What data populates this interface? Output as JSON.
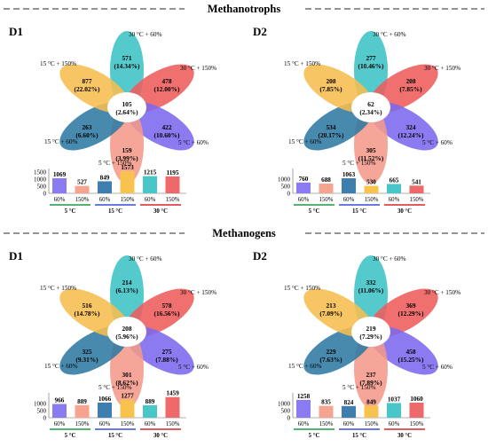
{
  "sections": [
    {
      "title": "Methanotrophs",
      "panels": [
        {
          "label": "D1",
          "center": {
            "count": "105",
            "pct": "(2.64%)"
          },
          "petals": [
            {
              "label": "30 °C + 60%",
              "count": "571",
              "pct": "(14.34%)",
              "color": "#3cc3c6"
            },
            {
              "label": "30 °C + 150%",
              "count": "478",
              "pct": "(12.00%)",
              "color": "#ee5c5c"
            },
            {
              "label": "5 °C + 60%",
              "count": "422",
              "pct": "(10.60%)",
              "color": "#7b68ee"
            },
            {
              "label": "5 °C + 150%",
              "count": "159",
              "pct": "(3.99%)",
              "color": "#f49a8a"
            },
            {
              "label": "15 °C + 60%",
              "count": "263",
              "pct": "(6.60%)",
              "color": "#2f7aa3"
            },
            {
              "label": "15 °C + 150%",
              "count": "877",
              "pct": "(22.02%)",
              "color": "#f7bd4e"
            }
          ],
          "bars": {
            "values": [
              1069,
              527,
              849,
              1573,
              1215,
              1195
            ],
            "value_labels": [
              "1069",
              "527",
              "849",
              "1573",
              "1215",
              "1195"
            ],
            "ticks": [
              "1500",
              "1000",
              "500",
              "0"
            ],
            "categories": [
              "60%",
              "150%",
              "60%",
              "150%",
              "60%",
              "150%"
            ],
            "groups": [
              "5 °C",
              "15 °C",
              "30 °C"
            ]
          }
        },
        {
          "label": "D2",
          "center": {
            "count": "62",
            "pct": "(2.34%)"
          },
          "petals": [
            {
              "label": "30 °C + 60%",
              "count": "277",
              "pct": "(10.46%)",
              "color": "#3cc3c6"
            },
            {
              "label": "30 °C + 150%",
              "count": "208",
              "pct": "(7.85%)",
              "color": "#ee5c5c"
            },
            {
              "label": "5 °C + 60%",
              "count": "324",
              "pct": "(12.24%)",
              "color": "#7b68ee"
            },
            {
              "label": "5 °C + 150%",
              "count": "305",
              "pct": "(11.52%)",
              "color": "#f49a8a"
            },
            {
              "label": "15 °C + 60%",
              "count": "534",
              "pct": "(20.17%)",
              "color": "#2f7aa3"
            },
            {
              "label": "15 °C + 150%",
              "count": "208",
              "pct": "(7.85%)",
              "color": "#f7bd4e"
            }
          ],
          "bars": {
            "values": [
              760,
              688,
              1063,
              530,
              665,
              541
            ],
            "value_labels": [
              "760",
              "688",
              "1063",
              "530",
              "665",
              "541"
            ],
            "ticks": [
              "1000",
              "500",
              "0"
            ],
            "categories": [
              "60%",
              "150%",
              "60%",
              "150%",
              "60%",
              "150%"
            ],
            "groups": [
              "5 °C",
              "15 °C",
              "30 °C"
            ]
          }
        }
      ]
    },
    {
      "title": "Methanogens",
      "panels": [
        {
          "label": "D1",
          "center": {
            "count": "208",
            "pct": "(5.96%)"
          },
          "petals": [
            {
              "label": "30 °C + 60%",
              "count": "214",
              "pct": "(6.13%)",
              "color": "#3cc3c6"
            },
            {
              "label": "30 °C + 150%",
              "count": "578",
              "pct": "(16.56%)",
              "color": "#ee5c5c"
            },
            {
              "label": "5 °C + 60%",
              "count": "275",
              "pct": "(7.88%)",
              "color": "#7b68ee"
            },
            {
              "label": "5 °C + 150%",
              "count": "301",
              "pct": "(8.62%)",
              "color": "#f49a8a"
            },
            {
              "label": "15 °C + 60%",
              "count": "325",
              "pct": "(9.31%)",
              "color": "#2f7aa3"
            },
            {
              "label": "15 °C + 150%",
              "count": "516",
              "pct": "(14.78%)",
              "color": "#f7bd4e"
            }
          ],
          "bars": {
            "values": [
              966,
              889,
              1066,
              1277,
              889,
              1459
            ],
            "value_labels": [
              "966",
              "889",
              "1066",
              "1277",
              "889",
              "1459"
            ],
            "ticks": [
              "1000",
              "500",
              "0"
            ],
            "categories": [
              "60%",
              "150%",
              "60%",
              "150%",
              "60%",
              "150%"
            ],
            "groups": [
              "5 °C",
              "15 °C",
              "30 °C"
            ]
          }
        },
        {
          "label": "D2",
          "center": {
            "count": "219",
            "pct": "(7.29%)"
          },
          "petals": [
            {
              "label": "30 °C + 60%",
              "count": "332",
              "pct": "(11.06%)",
              "color": "#3cc3c6"
            },
            {
              "label": "30 °C + 150%",
              "count": "369",
              "pct": "(12.29%)",
              "color": "#ee5c5c"
            },
            {
              "label": "5 °C + 60%",
              "count": "458",
              "pct": "(15.25%)",
              "color": "#7b68ee"
            },
            {
              "label": "5 °C + 150%",
              "count": "237",
              "pct": "(7.89%)",
              "color": "#f49a8a"
            },
            {
              "label": "15 °C + 60%",
              "count": "229",
              "pct": "(7.63%)",
              "color": "#2f7aa3"
            },
            {
              "label": "15 °C + 150%",
              "count": "213",
              "pct": "(7.09%)",
              "color": "#f7bd4e"
            }
          ],
          "bars": {
            "values": [
              1258,
              835,
              824,
              849,
              1037,
              1060
            ],
            "value_labels": [
              "1258",
              "835",
              "824",
              "849",
              "1037",
              "1060"
            ],
            "ticks": [
              "1000",
              "500",
              "0"
            ],
            "categories": [
              "60%",
              "150%",
              "60%",
              "150%",
              "60%",
              "150%"
            ],
            "groups": [
              "5 °C",
              "15 °C",
              "30 °C"
            ]
          }
        }
      ]
    }
  ],
  "bar_colors": [
    "#8a7cf0",
    "#f6a38f",
    "#3f7fb0",
    "#f8c24f",
    "#49c6c8",
    "#ee6a6a"
  ],
  "group_underline_colors": [
    "#1e9a45",
    "#3a4fd6",
    "#d7262b"
  ],
  "divider_color": "#555555"
}
